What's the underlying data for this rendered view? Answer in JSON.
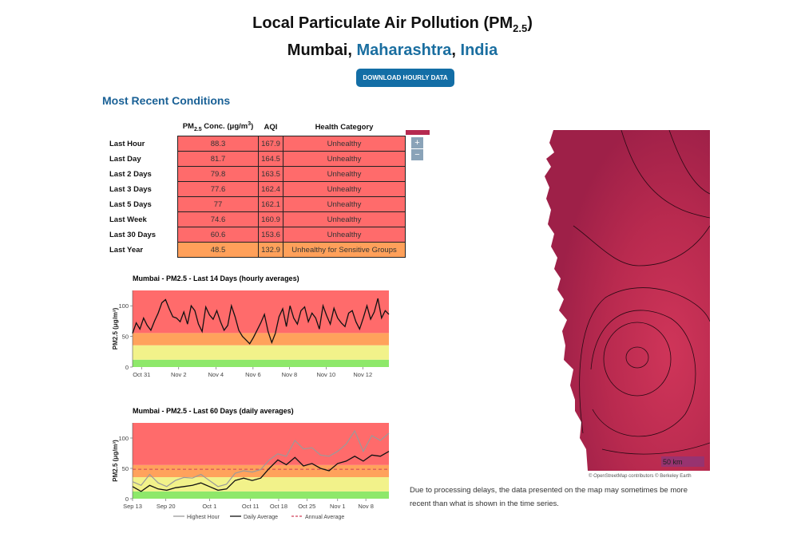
{
  "header": {
    "title_main": "Local Particulate Air Pollution (PM",
    "title_sub": "2.5",
    "title_end": ")",
    "city": "Mumbai",
    "sep1": ", ",
    "state": "Maharashtra",
    "sep2": ", ",
    "country": "India",
    "download_label": "DOWNLOAD HOURLY DATA"
  },
  "conditions": {
    "heading": "Most Recent Conditions",
    "col_conc": "PM",
    "col_conc_sub": "2.5",
    "col_conc_unit": " Conc. (μg/m",
    "col_conc_sup": "3",
    "col_conc_end": ")",
    "col_aqi": "AQI",
    "col_health": "Health Category",
    "rows": [
      {
        "label": "Last Hour",
        "conc": "88.3",
        "aqi": "167.9",
        "category": "Unhealthy"
      },
      {
        "label": "Last Day",
        "conc": "81.7",
        "aqi": "164.5",
        "category": "Unhealthy"
      },
      {
        "label": "Last 2 Days",
        "conc": "79.8",
        "aqi": "163.5",
        "category": "Unhealthy"
      },
      {
        "label": "Last 3 Days",
        "conc": "77.6",
        "aqi": "162.4",
        "category": "Unhealthy"
      },
      {
        "label": "Last 5 Days",
        "conc": "77",
        "aqi": "162.1",
        "category": "Unhealthy"
      },
      {
        "label": "Last Week",
        "conc": "74.6",
        "aqi": "160.9",
        "category": "Unhealthy"
      },
      {
        "label": "Last 30 Days",
        "conc": "60.6",
        "aqi": "153.6",
        "category": "Unhealthy"
      },
      {
        "label": "Last Year",
        "conc": "48.5",
        "aqi": "132.9",
        "category": "Unhealthy for Sensitive Groups"
      }
    ]
  },
  "chart_data": [
    {
      "type": "line",
      "title": "Mumbai - PM2.5 - Last 14 Days (hourly averages)",
      "ylabel": "PM2.5 (μg/m³)",
      "ylim": [
        0,
        125
      ],
      "yticks": [
        0,
        50,
        100
      ],
      "xticks": [
        "Oct 31",
        "Nov 2",
        "Nov 4",
        "Nov 6",
        "Nov 8",
        "Nov 10",
        "Nov 12"
      ],
      "xlim_days": [
        0,
        14
      ],
      "bands": [
        {
          "from": 0,
          "to": 12,
          "color": "#8ee86a"
        },
        {
          "from": 12,
          "to": 35.5,
          "color": "#f2f28a"
        },
        {
          "from": 35.5,
          "to": 55.5,
          "color": "#ffa25c"
        },
        {
          "from": 55.5,
          "to": 125,
          "color": "#ff6b6b"
        }
      ],
      "series": [
        {
          "color": "#111111",
          "x": [
            0,
            0.2,
            0.4,
            0.6,
            0.8,
            1.0,
            1.2,
            1.4,
            1.6,
            1.8,
            2.0,
            2.2,
            2.4,
            2.6,
            2.8,
            3.0,
            3.2,
            3.4,
            3.6,
            3.8,
            4.0,
            4.2,
            4.4,
            4.6,
            4.8,
            5.0,
            5.2,
            5.4,
            5.6,
            5.8,
            6.0,
            6.2,
            6.4,
            6.6,
            6.8,
            7.0,
            7.2,
            7.4,
            7.6,
            7.8,
            8.0,
            8.2,
            8.4,
            8.6,
            8.8,
            9.0,
            9.2,
            9.4,
            9.6,
            9.8,
            10.0,
            10.2,
            10.4,
            10.6,
            10.8,
            11.0,
            11.2,
            11.4,
            11.6,
            11.8,
            12.0,
            12.2,
            12.4,
            12.6,
            12.8,
            13.0,
            13.2,
            13.4,
            13.6,
            13.8,
            14.0
          ],
          "y": [
            55,
            72,
            62,
            80,
            68,
            60,
            75,
            88,
            105,
            110,
            95,
            82,
            80,
            74,
            90,
            70,
            100,
            92,
            70,
            58,
            98,
            85,
            78,
            92,
            74,
            60,
            68,
            100,
            82,
            60,
            50,
            44,
            38,
            48,
            60,
            72,
            86,
            58,
            40,
            55,
            82,
            95,
            66,
            100,
            80,
            70,
            92,
            98,
            74,
            88,
            80,
            62,
            100,
            84,
            70,
            96,
            80,
            72,
            66,
            88,
            92,
            74,
            62,
            80,
            100,
            78,
            90,
            112,
            80,
            92,
            86
          ]
        }
      ]
    },
    {
      "type": "line",
      "title": "Mumbai - PM2.5 - Last 60 Days (daily averages)",
      "ylabel": "PM2.5 (μg/m³)",
      "ylim": [
        0,
        125
      ],
      "yticks": [
        0,
        50,
        100
      ],
      "xticks": [
        "Sep 13",
        "Sep 20",
        "Oct 1",
        "Oct 11",
        "Oct 18",
        "Oct 25",
        "Nov 1",
        "Nov 8"
      ],
      "bands": [
        {
          "from": 0,
          "to": 12,
          "color": "#8ee86a"
        },
        {
          "from": 12,
          "to": 35.5,
          "color": "#f2f28a"
        },
        {
          "from": 35.5,
          "to": 55.5,
          "color": "#ffa25c"
        },
        {
          "from": 55.5,
          "to": 125,
          "color": "#ff6b6b"
        }
      ],
      "legend": [
        "Highest Hour",
        "Daily Average",
        "Annual Average"
      ],
      "annual_average": 48.5,
      "series": [
        {
          "name": "Highest Hour",
          "color": "#9a9a9a",
          "x": [
            0,
            2,
            4,
            6,
            8,
            10,
            12,
            14,
            16,
            18,
            20,
            22,
            24,
            26,
            28,
            30,
            32,
            34,
            36,
            38,
            40,
            42,
            44,
            46,
            48,
            50,
            52,
            54,
            56,
            58,
            60
          ],
          "y": [
            28,
            22,
            40,
            26,
            20,
            30,
            35,
            34,
            40,
            30,
            20,
            24,
            42,
            46,
            44,
            48,
            64,
            74,
            70,
            96,
            82,
            84,
            72,
            70,
            78,
            90,
            112,
            78,
            104,
            96,
            108
          ]
        },
        {
          "name": "Daily Average",
          "color": "#111111",
          "x": [
            0,
            2,
            4,
            6,
            8,
            10,
            12,
            14,
            16,
            18,
            20,
            22,
            24,
            26,
            28,
            30,
            32,
            34,
            36,
            38,
            40,
            42,
            44,
            46,
            48,
            50,
            52,
            54,
            56,
            58,
            60
          ],
          "y": [
            20,
            12,
            22,
            16,
            14,
            18,
            20,
            22,
            26,
            20,
            14,
            16,
            30,
            34,
            30,
            34,
            50,
            64,
            56,
            68,
            54,
            58,
            50,
            46,
            58,
            62,
            70,
            62,
            72,
            70,
            78
          ]
        }
      ]
    }
  ],
  "map": {
    "scale_label": "50 km",
    "credit": "© OpenStreetMap contributors © Berkeley Earth",
    "zoom_in": "+",
    "zoom_out": "−"
  },
  "note": "Due to processing delays, the data presented on the map may sometimes be more recent than what is shown in the time series."
}
